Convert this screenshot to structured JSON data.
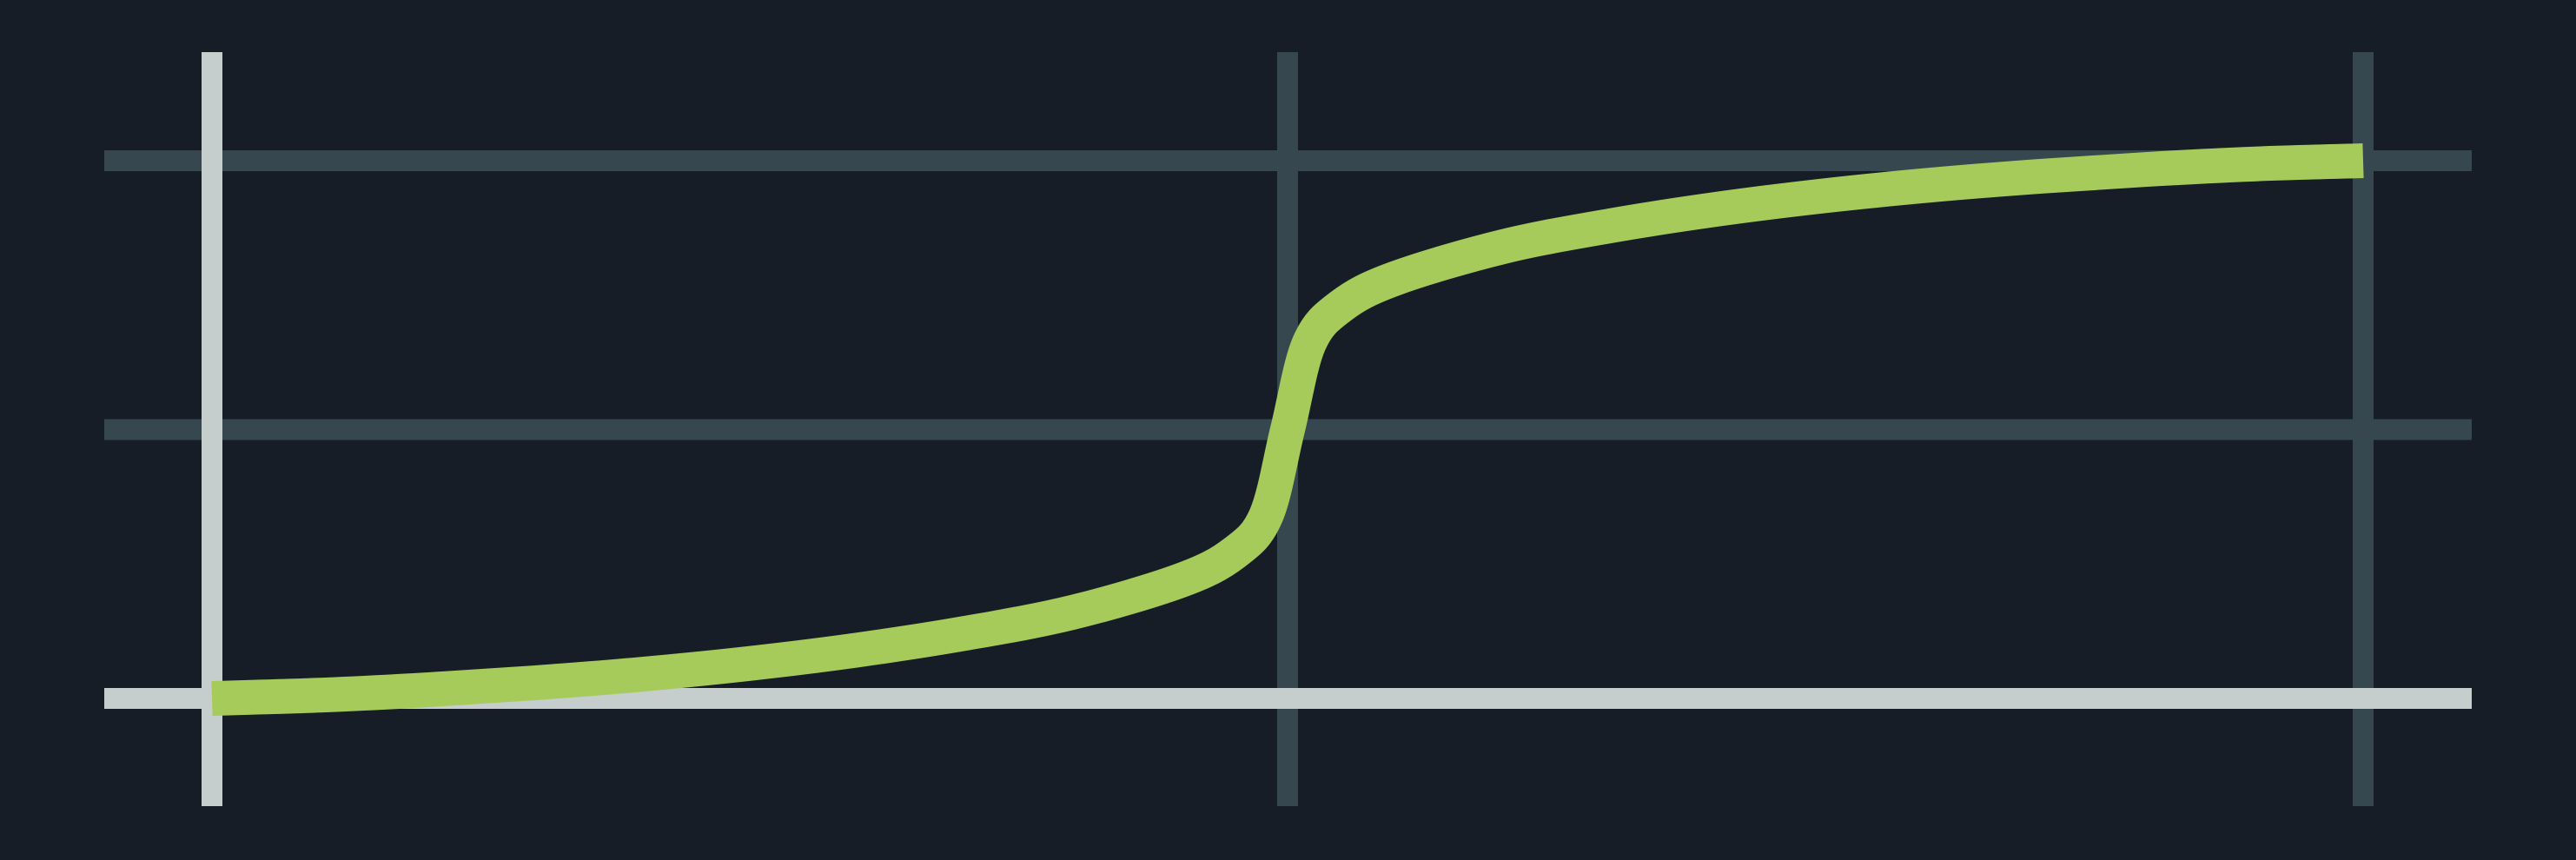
{
  "colors": {
    "background": "#161d27",
    "grid": "#37474f",
    "axis": "#c5cdcd",
    "curve": "#a6cb5a"
  },
  "chart_data": {
    "type": "line",
    "title": "",
    "xlabel": "",
    "ylabel": "",
    "xlim": [
      -1,
      1
    ],
    "ylim": [
      0,
      1
    ],
    "grid": true,
    "x_gridlines": [
      -1,
      0,
      1
    ],
    "y_gridlines": [
      0,
      0.5,
      1
    ],
    "series": [
      {
        "style": "smooth",
        "x": [
          -1,
          -0.9,
          -0.8,
          -0.7,
          -0.6,
          -0.5,
          -0.4,
          -0.3,
          -0.2,
          -0.1,
          -0.05,
          -0.02,
          0,
          0.02,
          0.05,
          0.1,
          0.2,
          0.3,
          0.4,
          0.5,
          0.6,
          0.7,
          0.8,
          0.9,
          1
        ],
        "y": [
          0.0,
          0.006,
          0.016,
          0.029,
          0.045,
          0.065,
          0.09,
          0.121,
          0.16,
          0.219,
          0.27,
          0.34,
          0.5,
          0.66,
          0.73,
          0.781,
          0.84,
          0.879,
          0.91,
          0.935,
          0.955,
          0.971,
          0.984,
          0.994,
          1.0
        ]
      }
    ]
  }
}
